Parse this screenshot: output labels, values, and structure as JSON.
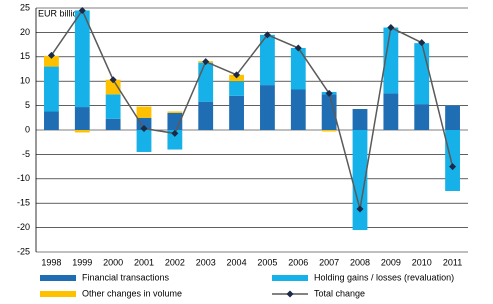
{
  "chart_data": {
    "type": "bar",
    "stacked": true,
    "y_label": "EUR billion",
    "categories": [
      "1998",
      "1999",
      "2000",
      "2001",
      "2002",
      "2003",
      "2004",
      "2005",
      "2006",
      "2007",
      "2008",
      "2009",
      "2010",
      "2011"
    ],
    "series": [
      {
        "name": "Financial transactions",
        "type": "bar",
        "color": "#1f6db3",
        "values": [
          3.8,
          4.7,
          2.3,
          2.5,
          3.5,
          5.8,
          7,
          9.2,
          8.3,
          7.3,
          4.3,
          7.5,
          5.3,
          5
        ]
      },
      {
        "name": "Holding gains / losses (revaluation)",
        "type": "bar",
        "color": "#16b1e8",
        "values": [
          9.2,
          19.8,
          5,
          -4.5,
          -4,
          8,
          3,
          10.3,
          8.5,
          0.5,
          -20.5,
          13.5,
          12.5,
          -12.5
        ]
      },
      {
        "name": "Other changes in volume",
        "type": "bar",
        "color": "#ffc000",
        "values": [
          2.2,
          -0.5,
          3,
          2.3,
          0.3,
          0.3,
          1.3,
          0,
          0,
          -0.3,
          0,
          0,
          0,
          0
        ]
      },
      {
        "name": "Total change",
        "type": "line",
        "color": "#5a5a5a",
        "marker_color": "#1b2a48",
        "values": [
          15.3,
          24.5,
          10.3,
          0.3,
          -0.7,
          14,
          11.3,
          19.5,
          16.8,
          7.5,
          -16.2,
          21,
          17.9,
          -7.5
        ]
      }
    ],
    "ylim": [
      -25,
      25
    ],
    "yticks": [
      -25,
      -20,
      -15,
      -10,
      -5,
      0,
      5,
      10,
      15,
      20,
      25
    ],
    "grid": true
  }
}
